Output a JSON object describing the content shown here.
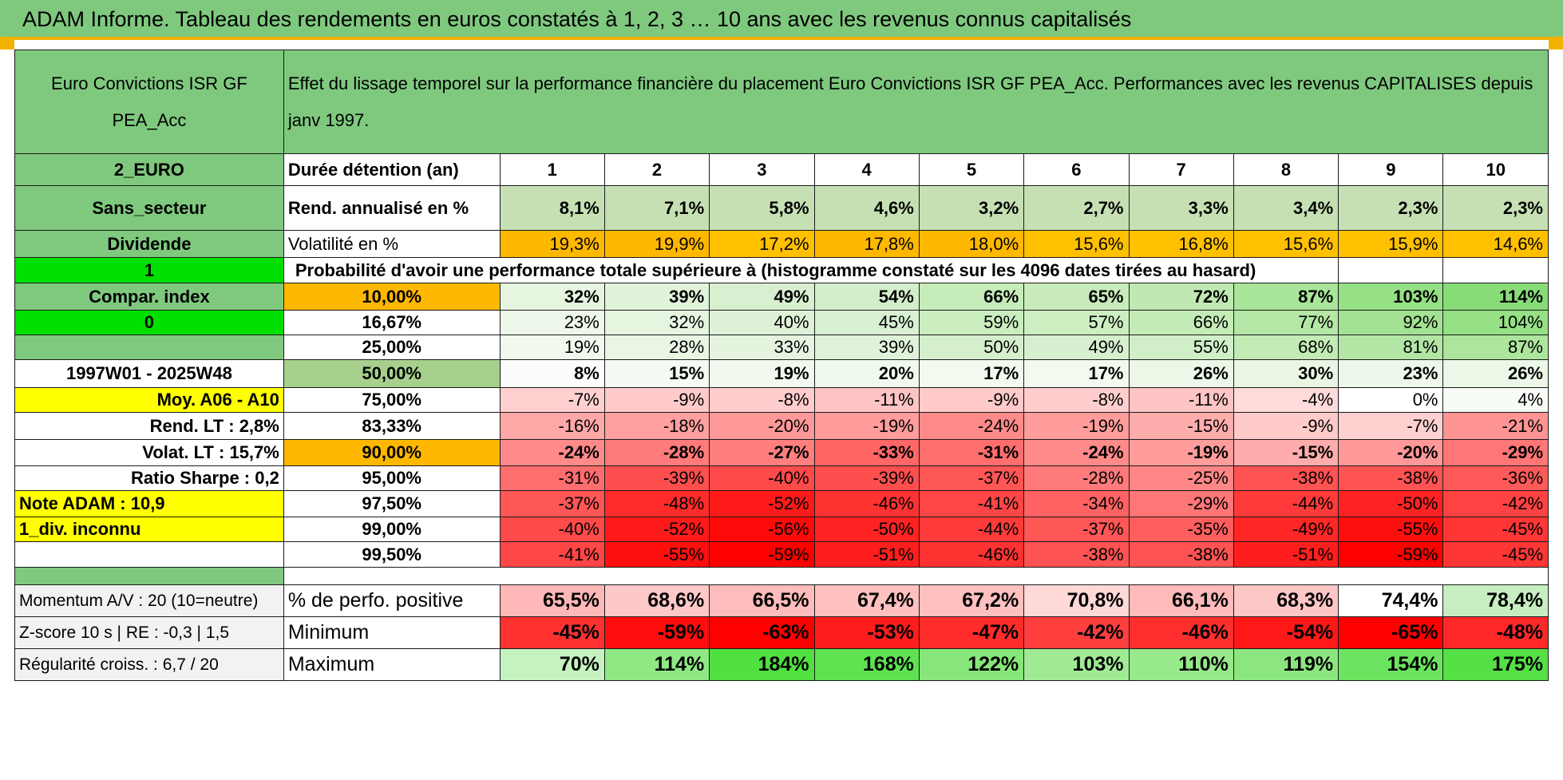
{
  "title": "ADAM Informe. Tableau des rendements en euros constatés à 1, 2, 3 … 10 ans avec les revenus connus capitalisés",
  "fund_name": "Euro Convictions ISR GF PEA_Acc",
  "description": "Effet du lissage temporel sur la performance financière du placement Euro Convictions ISR GF PEA_Acc. Performances avec les revenus CAPITALISES depuis janv 1997.",
  "side": {
    "currency": "2_EURO",
    "sector": "Sans_secteur",
    "dividend": "Dividende",
    "flag1": "1",
    "compar_index": "Compar. index",
    "flag0": "0",
    "period": "1997W01 - 2025W48",
    "moy": "Moy. A06 - A10",
    "rend_lt": "Rend. LT :    2,8%",
    "volat_lt": "Volat. LT :    15,7%",
    "sharpe": "Ratio Sharpe :    0,2",
    "note": "Note ADAM : 10,9",
    "div": "1_div. inconnu",
    "momentum": "Momentum A/V : 20 (10=neutre)",
    "zscore": "Z-score 10 s | RE : -0,3 | 1,5",
    "regularite": "Régularité croiss. : 6,7 / 20"
  },
  "row_labels": {
    "duree": "Durée détention (an)",
    "rend": "Rend. annualisé en %",
    "volat": "Volatilité en %",
    "proba": "Probabilité d'avoir une performance totale supérieure à (histogramme constaté sur les 4096 dates tirées au hasard)",
    "positive": "% de perfo. positive",
    "minimum": "Minimum",
    "maximum": "Maximum"
  },
  "years": [
    "1",
    "2",
    "3",
    "4",
    "5",
    "6",
    "7",
    "8",
    "9",
    "10"
  ],
  "rend": [
    "8,1%",
    "7,1%",
    "5,8%",
    "4,6%",
    "3,2%",
    "2,7%",
    "3,3%",
    "3,4%",
    "2,3%",
    "2,3%"
  ],
  "volat": [
    "19,3%",
    "19,9%",
    "17,2%",
    "17,8%",
    "18,0%",
    "15,6%",
    "16,8%",
    "15,6%",
    "15,9%",
    "14,6%"
  ],
  "volat_colors": [
    "#ffb800",
    "#ffb800",
    "#ffc000",
    "#ffb800",
    "#ffb800",
    "#ffc000",
    "#ffc000",
    "#ffc000",
    "#ffc000",
    "#ffc000"
  ],
  "percentiles": [
    {
      "p": "10,00%",
      "vals": [
        "32%",
        "39%",
        "49%",
        "54%",
        "66%",
        "65%",
        "72%",
        "87%",
        "103%",
        "114%"
      ],
      "colors": [
        "#e6f5e0",
        "#e1f3da",
        "#d8f0d0",
        "#d3eeca",
        "#c6ecba",
        "#c8ecbb",
        "#bfe9b1",
        "#a9e59a",
        "#96e086",
        "#88dc78"
      ]
    },
    {
      "p": "16,67%",
      "vals": [
        "23%",
        "32%",
        "40%",
        "45%",
        "59%",
        "57%",
        "66%",
        "77%",
        "92%",
        "104%"
      ],
      "colors": [
        "#eef8ea",
        "#e6f5e0",
        "#dff2d8",
        "#d9f0d2",
        "#cbeebf",
        "#cdeec1",
        "#c4ecb7",
        "#b5e7a6",
        "#a3e293",
        "#96e086"
      ]
    },
    {
      "p": "25,00%",
      "vals": [
        "19%",
        "28%",
        "33%",
        "39%",
        "50%",
        "49%",
        "55%",
        "68%",
        "81%",
        "87%"
      ],
      "colors": [
        "#f1f9ee",
        "#e9f6e4",
        "#e5f4df",
        "#e0f3da",
        "#d5efcd",
        "#d6efce",
        "#d0eec7",
        "#c3ebb6",
        "#b3e6a4",
        "#ade59d"
      ]
    },
    {
      "p": "50,00%",
      "vals": [
        "8%",
        "15%",
        "19%",
        "20%",
        "17%",
        "17%",
        "26%",
        "30%",
        "23%",
        "26%"
      ],
      "colors": [
        "#fafdf9",
        "#f4fbf2",
        "#f1f9ee",
        "#f0f9ed",
        "#f2faef",
        "#f2faef",
        "#ebf7e7",
        "#e8f6e3",
        "#eef8ea",
        "#ebf7e7"
      ]
    },
    {
      "p": "75,00%",
      "vals": [
        "-7%",
        "-9%",
        "-8%",
        "-11%",
        "-9%",
        "-8%",
        "-11%",
        "-4%",
        "0%",
        "4%"
      ],
      "colors": [
        "#ffd0d0",
        "#ffcaca",
        "#ffcdcd",
        "#ffc4c4",
        "#ffcaca",
        "#ffcdcd",
        "#ffc4c4",
        "#ffdada",
        "#ffffff",
        "#f8fcf6"
      ]
    },
    {
      "p": "83,33%",
      "vals": [
        "-16%",
        "-18%",
        "-20%",
        "-19%",
        "-24%",
        "-19%",
        "-15%",
        "-9%",
        "-7%",
        "-21%"
      ],
      "colors": [
        "#ffa8a8",
        "#ffa0a0",
        "#ff9898",
        "#ff9c9c",
        "#ff8a8a",
        "#ff9c9c",
        "#ffacac",
        "#ffcaca",
        "#ffd0d0",
        "#ff9494"
      ]
    },
    {
      "p": "90,00%",
      "vals": [
        "-24%",
        "-28%",
        "-27%",
        "-33%",
        "-31%",
        "-24%",
        "-19%",
        "-15%",
        "-20%",
        "-29%"
      ],
      "colors": [
        "#ff8a8a",
        "#ff7a7a",
        "#ff7e7e",
        "#ff6666",
        "#ff6e6e",
        "#ff8a8a",
        "#ff9c9c",
        "#ffacac",
        "#ff9898",
        "#ff7676"
      ]
    },
    {
      "p": "95,00%",
      "vals": [
        "-31%",
        "-39%",
        "-40%",
        "-39%",
        "-37%",
        "-28%",
        "-25%",
        "-38%",
        "-38%",
        "-36%"
      ],
      "colors": [
        "#ff6e6e",
        "#ff4e4e",
        "#ff4a4a",
        "#ff4e4e",
        "#ff5656",
        "#ff7a7a",
        "#ff8686",
        "#ff5252",
        "#ff5252",
        "#ff5a5a"
      ]
    },
    {
      "p": "97,50%",
      "vals": [
        "-37%",
        "-48%",
        "-52%",
        "-46%",
        "-41%",
        "-34%",
        "-29%",
        "-44%",
        "-50%",
        "-42%"
      ],
      "colors": [
        "#ff5656",
        "#ff2a2a",
        "#ff1a1a",
        "#ff3232",
        "#ff4646",
        "#ff6262",
        "#ff7676",
        "#ff3a3a",
        "#ff2222",
        "#ff4242"
      ]
    },
    {
      "p": "99,00%",
      "vals": [
        "-40%",
        "-52%",
        "-56%",
        "-50%",
        "-44%",
        "-37%",
        "-35%",
        "-49%",
        "-55%",
        "-45%"
      ],
      "colors": [
        "#ff4a4a",
        "#ff1a1a",
        "#ff0a0a",
        "#ff2222",
        "#ff3a3a",
        "#ff5656",
        "#ff5e5e",
        "#ff2626",
        "#ff0e0e",
        "#ff3636"
      ]
    },
    {
      "p": "99,50%",
      "vals": [
        "-41%",
        "-55%",
        "-59%",
        "-51%",
        "-46%",
        "-38%",
        "-38%",
        "-51%",
        "-59%",
        "-45%"
      ],
      "colors": [
        "#ff4646",
        "#ff0e0e",
        "#ff0000",
        "#ff1e1e",
        "#ff3232",
        "#ff5252",
        "#ff5252",
        "#ff1e1e",
        "#ff0000",
        "#ff3636"
      ]
    }
  ],
  "positive": [
    "65,5%",
    "68,6%",
    "66,5%",
    "67,4%",
    "67,2%",
    "70,8%",
    "66,1%",
    "68,3%",
    "74,4%",
    "78,4%"
  ],
  "positive_colors": [
    "#ffb8b8",
    "#ffc8c8",
    "#ffbcbc",
    "#ffc0c0",
    "#ffc0c0",
    "#ffd8d8",
    "#ffbaba",
    "#ffc6c6",
    "#ffffff",
    "#c6eec0"
  ],
  "minimum": [
    "-45%",
    "-59%",
    "-63%",
    "-53%",
    "-47%",
    "-42%",
    "-46%",
    "-54%",
    "-65%",
    "-48%"
  ],
  "minimum_colors": [
    "#ff3030",
    "#ff0c0c",
    "#ff0000",
    "#ff1c1c",
    "#ff2c2c",
    "#ff3e3e",
    "#ff2e2e",
    "#ff1818",
    "#ff0000",
    "#ff2828"
  ],
  "maximum": [
    "70%",
    "114%",
    "184%",
    "168%",
    "122%",
    "103%",
    "110%",
    "119%",
    "154%",
    "175%"
  ],
  "maximum_colors": [
    "#c6f2c0",
    "#8fe884",
    "#50e040",
    "#5ee250",
    "#86e67a",
    "#a0ea94",
    "#98e88c",
    "#8ce680",
    "#6ce460",
    "#55e046"
  ]
}
